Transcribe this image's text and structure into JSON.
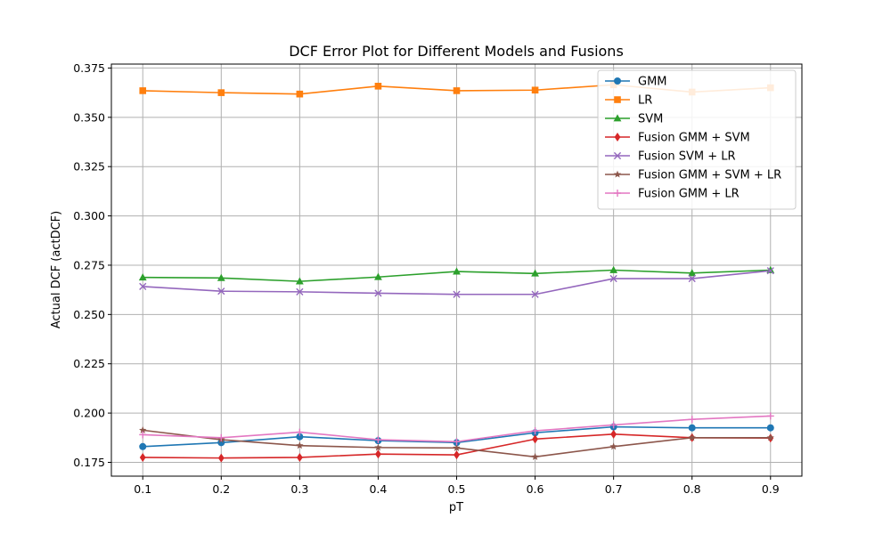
{
  "chart_data": {
    "type": "line",
    "title": "DCF Error Plot for Different Models and Fusions",
    "xlabel": "pT",
    "ylabel": "Actual DCF (actDCF)",
    "x": [
      0.1,
      0.2,
      0.3,
      0.4,
      0.5,
      0.6,
      0.7,
      0.8,
      0.9
    ],
    "x_tick_labels": [
      "0.1",
      "0.2",
      "0.3",
      "0.4",
      "0.5",
      "0.6",
      "0.7",
      "0.8",
      "0.9"
    ],
    "xlim": [
      0.06,
      0.94
    ],
    "ylim": [
      0.168,
      0.377
    ],
    "y_ticks": [
      0.175,
      0.2,
      0.225,
      0.25,
      0.275,
      0.3,
      0.325,
      0.35,
      0.375
    ],
    "y_tick_labels": [
      "0.175",
      "0.200",
      "0.225",
      "0.250",
      "0.275",
      "0.300",
      "0.325",
      "0.350",
      "0.375"
    ],
    "grid": true,
    "legend_position": "top-right",
    "series": [
      {
        "name": "GMM",
        "color": "#1f77b4",
        "marker": "circle",
        "values": [
          0.183,
          0.185,
          0.188,
          0.186,
          0.185,
          0.19,
          0.193,
          0.1925,
          0.1925
        ]
      },
      {
        "name": "LR",
        "color": "#ff7f0e",
        "marker": "square",
        "values": [
          0.3635,
          0.3625,
          0.3618,
          0.3658,
          0.3635,
          0.3638,
          0.3665,
          0.3628,
          0.365
        ]
      },
      {
        "name": "SVM",
        "color": "#2ca02c",
        "marker": "triangle",
        "values": [
          0.2688,
          0.2685,
          0.2668,
          0.269,
          0.2718,
          0.2708,
          0.2725,
          0.271,
          0.2725
        ]
      },
      {
        "name": "Fusion GMM + SVM",
        "color": "#d62728",
        "marker": "diamond",
        "values": [
          0.1775,
          0.1772,
          0.1775,
          0.1792,
          0.1788,
          0.1868,
          0.1893,
          0.1875,
          0.1873
        ]
      },
      {
        "name": "Fusion SVM + LR",
        "color": "#9467bd",
        "marker": "x",
        "values": [
          0.2642,
          0.2618,
          0.2615,
          0.2608,
          0.2602,
          0.2602,
          0.2682,
          0.2682,
          0.2722
        ]
      },
      {
        "name": "Fusion GMM + SVM + LR",
        "color": "#8c564b",
        "marker": "star",
        "values": [
          0.1913,
          0.1865,
          0.1835,
          0.1825,
          0.1823,
          0.1778,
          0.183,
          0.1875,
          0.1875
        ]
      },
      {
        "name": "Fusion GMM + LR",
        "color": "#e377c2",
        "marker": "plus",
        "values": [
          0.189,
          0.1875,
          0.1903,
          0.1865,
          0.1855,
          0.191,
          0.194,
          0.1968,
          0.1985
        ]
      }
    ]
  }
}
